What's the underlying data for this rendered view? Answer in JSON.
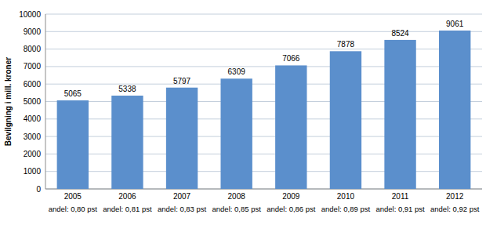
{
  "chart_data": {
    "type": "bar",
    "y_label": "Bevilgning i mill. kroner",
    "categories": [
      "2005",
      "2006",
      "2007",
      "2008",
      "2009",
      "2010",
      "2011",
      "2012"
    ],
    "values": [
      5065,
      5338,
      5797,
      6309,
      7066,
      7878,
      8524,
      9061
    ],
    "annotations": [
      "andel: 0,80 pst",
      "andel: 0,81 pst",
      "andel: 0,83 pst",
      "andel: 0,85 pst",
      "andel: 0,86 pst",
      "andel: 0,89 pst",
      "andel: 0,91 pst",
      "andel: 0,92 pst"
    ],
    "color": "#5b8fcc",
    "ylim": [
      0,
      10000
    ],
    "yticks": [
      0,
      1000,
      2000,
      3000,
      4000,
      5000,
      6000,
      7000,
      8000,
      9000,
      10000
    ],
    "grid": true,
    "data_labels": true
  }
}
